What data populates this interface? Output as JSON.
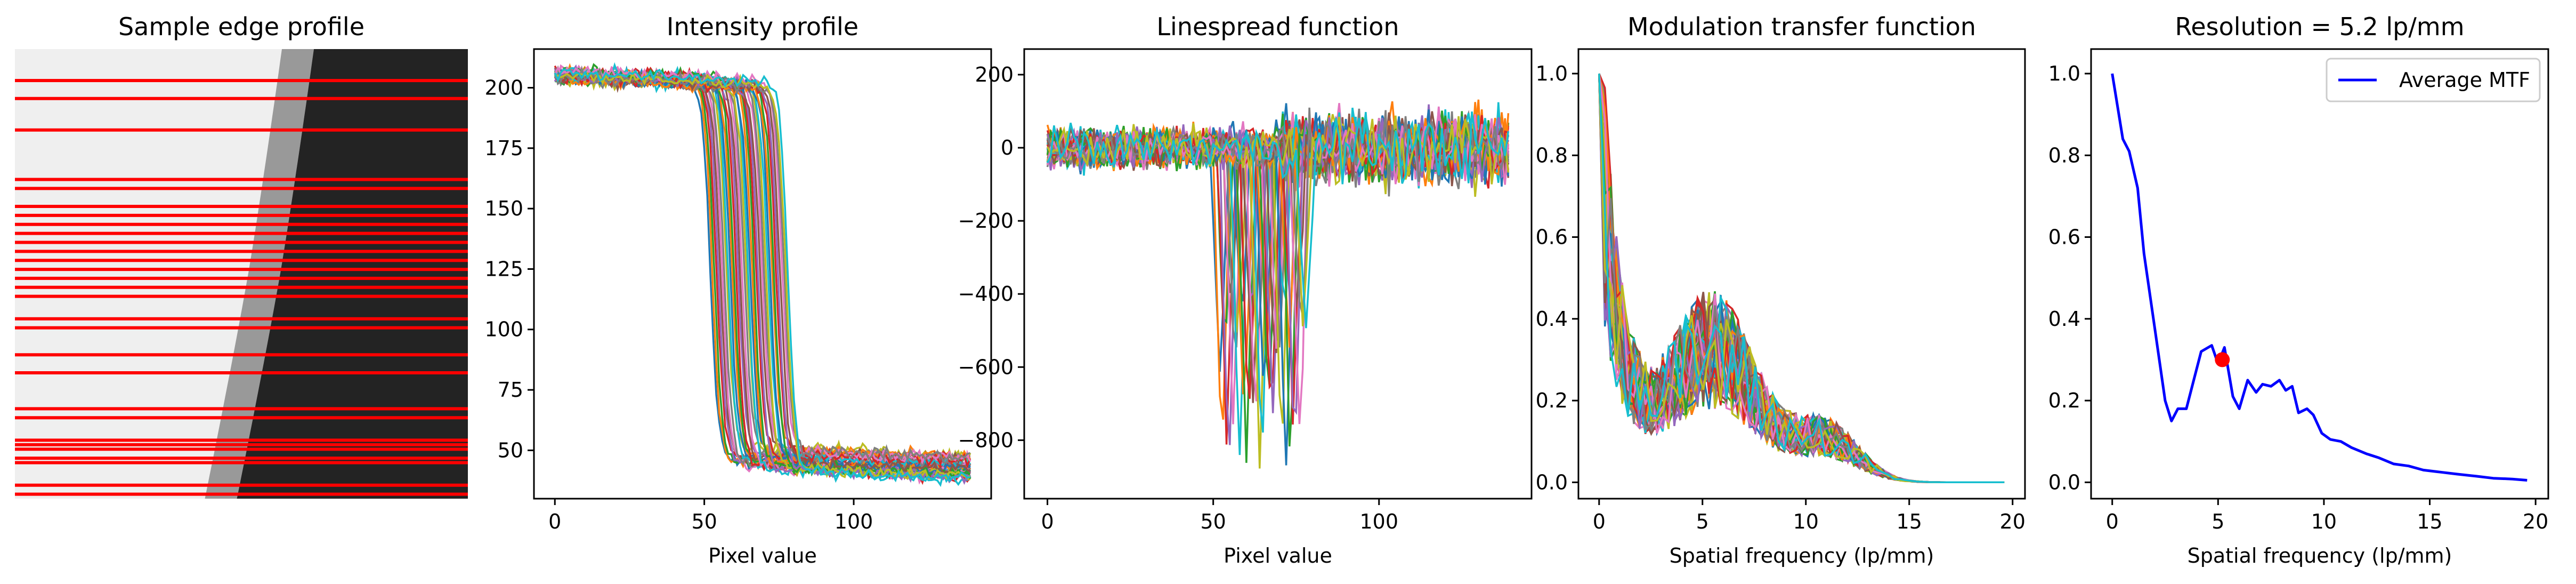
{
  "chart_data": [
    {
      "type": "image",
      "title": "Sample edge profile",
      "line_color": "#ff0000",
      "edge_rows": [
        0.07,
        0.11,
        0.18,
        0.29,
        0.31,
        0.35,
        0.37,
        0.39,
        0.41,
        0.43,
        0.45,
        0.47,
        0.49,
        0.51,
        0.53,
        0.55,
        0.6,
        0.62,
        0.68,
        0.72,
        0.8,
        0.82,
        0.87,
        0.88,
        0.89,
        0.91,
        0.92,
        0.97,
        0.99
      ]
    },
    {
      "type": "line",
      "title": "Intensity profile",
      "xlabel": "Pixel value",
      "ylabel": "",
      "xlim": [
        -7,
        146
      ],
      "ylim": [
        30,
        216
      ],
      "xticks": [
        0,
        50,
        100
      ],
      "yticks": [
        50,
        75,
        100,
        125,
        150,
        175,
        200
      ],
      "series_count": 40,
      "high_level": 205,
      "low_level": 50,
      "edge_position_range": [
        52,
        78
      ],
      "x_max": 139
    },
    {
      "type": "line",
      "title": "Linespread function",
      "xlabel": "Pixel value",
      "ylabel": "",
      "xlim": [
        -7,
        146
      ],
      "ylim": [
        -960,
        270
      ],
      "xticks": [
        0,
        50,
        100
      ],
      "yticks": [
        -800,
        -600,
        -400,
        -200,
        0,
        200
      ],
      "series_count": 40,
      "dip_range": [
        -940,
        -470
      ],
      "edge_position_range": [
        52,
        78
      ],
      "noise_amplitude": 110
    },
    {
      "type": "line",
      "title": "Modulation transfer function",
      "xlabel": "Spatial frequency (lp/mm)",
      "ylabel": "",
      "xlim": [
        -1,
        20.6
      ],
      "ylim": [
        -0.04,
        1.06
      ],
      "xticks": [
        0,
        5,
        10,
        15,
        20
      ],
      "yticks": [
        0.0,
        0.2,
        0.4,
        0.6,
        0.8,
        1.0
      ],
      "series_count": 40,
      "x_max": 19.6
    },
    {
      "type": "line",
      "title": "Resolution = 5.2 lp/mm",
      "xlabel": "Spatial frequency (lp/mm)",
      "ylabel": "",
      "xlim": [
        -1,
        20.6
      ],
      "ylim": [
        -0.04,
        1.06
      ],
      "xticks": [
        0,
        5,
        10,
        15,
        20
      ],
      "yticks": [
        0.0,
        0.2,
        0.4,
        0.6,
        0.8,
        1.0
      ],
      "legend_position": "upper right",
      "series": [
        {
          "name": "Average MTF",
          "color": "#0000ff",
          "x": [
            0,
            0.5,
            0.8,
            1.2,
            1.5,
            2.0,
            2.5,
            2.8,
            3.1,
            3.5,
            3.8,
            4.2,
            4.7,
            5.0,
            5.3,
            5.7,
            6.0,
            6.4,
            6.8,
            7.1,
            7.5,
            7.9,
            8.2,
            8.5,
            8.8,
            9.2,
            9.5,
            9.9,
            10.3,
            10.8,
            11.3,
            12.0,
            12.6,
            13.3,
            14.0,
            14.7,
            15.5,
            16.3,
            17.2,
            18.0,
            18.9,
            19.6
          ],
          "y": [
            1.0,
            0.84,
            0.81,
            0.72,
            0.56,
            0.38,
            0.2,
            0.15,
            0.18,
            0.18,
            0.24,
            0.32,
            0.335,
            0.29,
            0.33,
            0.21,
            0.18,
            0.25,
            0.22,
            0.24,
            0.235,
            0.25,
            0.225,
            0.235,
            0.17,
            0.18,
            0.165,
            0.12,
            0.105,
            0.1,
            0.085,
            0.07,
            0.06,
            0.045,
            0.04,
            0.03,
            0.025,
            0.02,
            0.015,
            0.01,
            0.008,
            0.005
          ]
        }
      ],
      "marker": {
        "x": 5.2,
        "y": 0.3,
        "color": "#ff0000"
      }
    }
  ],
  "palette": [
    "#1f77b4",
    "#ff7f0e",
    "#2ca02c",
    "#d62728",
    "#9467bd",
    "#8c564b",
    "#e377c2",
    "#7f7f7f",
    "#bcbd22",
    "#17becf"
  ]
}
